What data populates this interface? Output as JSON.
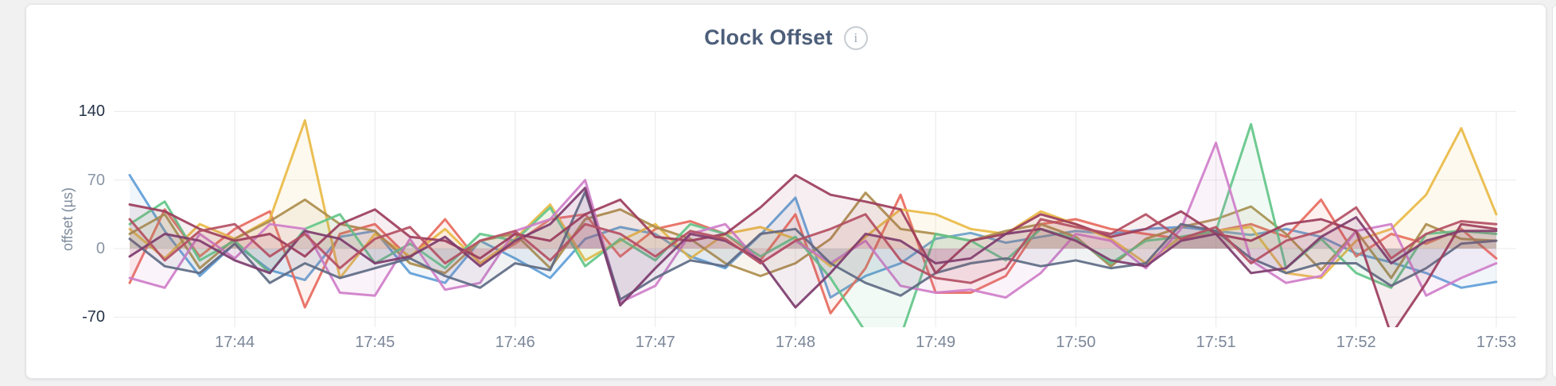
{
  "card": {
    "title": "Clock Offset",
    "info_icon_glyph": "i"
  },
  "colors": {
    "page_bg": "#f1f1f2",
    "card_bg": "#ffffff",
    "grid": "#e9e9ea",
    "axis_strong": "#263449",
    "axis_muted": "#8b95a5",
    "x_label": "#7b8699",
    "title": "#4c5e79",
    "icon_gray": "#c7ccd2"
  },
  "chart_data": {
    "type": "line",
    "title": "Clock Offset",
    "xlabel": "",
    "ylabel": "offset (µs)",
    "yticks": [
      140,
      70,
      0,
      -70
    ],
    "ylim": [
      -78,
      172
    ],
    "grid": true,
    "legend": "none",
    "x_start": "17:43:15",
    "sample_interval_seconds": 15,
    "points_per_series": 40,
    "xticklabels": [
      "17:44",
      "17:45",
      "17:46",
      "17:47",
      "17:48",
      "17:49",
      "17:50",
      "17:51",
      "17:52",
      "17:53"
    ],
    "area_fill_opacity": 0.09,
    "series": [
      {
        "name": "blue",
        "color": "#5f9ed7",
        "values": [
          75,
          18,
          -28,
          5,
          -22,
          -32,
          12,
          18,
          -25,
          -35,
          8,
          -10,
          -30,
          10,
          22,
          15,
          -8,
          -20,
          14,
          52,
          -50,
          -28,
          -15,
          10,
          16,
          6,
          12,
          18,
          15,
          20,
          22,
          18,
          14,
          20,
          12,
          -5,
          -14,
          -25,
          -40,
          -34
        ]
      },
      {
        "name": "salmon",
        "color": "#e76a5e",
        "values": [
          -35,
          40,
          -8,
          20,
          38,
          -60,
          15,
          25,
          -10,
          30,
          -15,
          5,
          30,
          35,
          -8,
          20,
          28,
          15,
          -12,
          35,
          -66,
          -20,
          55,
          -45,
          -45,
          -28,
          25,
          30,
          20,
          15,
          10,
          18,
          25,
          12,
          50,
          -8,
          15,
          5,
          20,
          -10
        ]
      },
      {
        "name": "gold",
        "color": "#e9ba45",
        "values": [
          20,
          -10,
          25,
          10,
          30,
          131,
          -30,
          15,
          -8,
          20,
          -15,
          10,
          45,
          -12,
          8,
          25,
          -10,
          15,
          22,
          10,
          -18,
          12,
          40,
          35,
          20,
          15,
          38,
          25,
          10,
          -15,
          12,
          18,
          22,
          -25,
          -30,
          8,
          20,
          55,
          123,
          35
        ]
      },
      {
        "name": "olive",
        "color": "#ac8d4d",
        "values": [
          15,
          35,
          -20,
          10,
          28,
          50,
          25,
          18,
          -15,
          -25,
          8,
          15,
          -20,
          30,
          40,
          22,
          10,
          -15,
          -28,
          -15,
          10,
          57,
          20,
          15,
          8,
          18,
          25,
          12,
          -18,
          10,
          22,
          30,
          43,
          15,
          -22,
          18,
          -30,
          25,
          10,
          8
        ]
      },
      {
        "name": "mint",
        "color": "#63c689",
        "values": [
          25,
          48,
          -12,
          8,
          -25,
          20,
          35,
          -15,
          5,
          -20,
          15,
          8,
          42,
          -18,
          10,
          -12,
          25,
          15,
          -8,
          12,
          -30,
          -85,
          -90,
          15,
          8,
          -12,
          20,
          10,
          -15,
          8,
          12,
          18,
          127,
          -20,
          10,
          -25,
          -40,
          15,
          18,
          15
        ]
      },
      {
        "name": "orchid",
        "color": "#cf7ec9",
        "values": [
          -30,
          -40,
          15,
          -10,
          25,
          20,
          -45,
          -48,
          10,
          -42,
          -35,
          18,
          30,
          70,
          -55,
          -38,
          15,
          25,
          -15,
          8,
          -15,
          8,
          -38,
          -45,
          -42,
          -50,
          -25,
          15,
          8,
          -20,
          20,
          108,
          -12,
          -35,
          -28,
          18,
          25,
          -48,
          -30,
          -15
        ]
      },
      {
        "name": "slate",
        "color": "#5e6b84",
        "values": [
          10,
          -18,
          -25,
          5,
          -35,
          -15,
          -30,
          -20,
          -10,
          -28,
          -40,
          -15,
          -22,
          58,
          -52,
          -30,
          -12,
          -18,
          15,
          20,
          -15,
          -35,
          -48,
          -25,
          -15,
          -10,
          -18,
          -12,
          -20,
          -15,
          25,
          18,
          -10,
          -25,
          -15,
          -15,
          -38,
          -20,
          5,
          8
        ]
      },
      {
        "name": "maroon",
        "color": "#9c3d5c",
        "values": [
          45,
          38,
          20,
          8,
          15,
          -8,
          25,
          40,
          12,
          8,
          -10,
          15,
          8,
          35,
          50,
          12,
          8,
          15,
          42,
          75,
          55,
          48,
          40,
          -25,
          8,
          15,
          35,
          25,
          12,
          20,
          38,
          15,
          8,
          25,
          30,
          18,
          -88,
          -35,
          25,
          20
        ]
      },
      {
        "name": "plum",
        "color": "#7d3c6e",
        "values": [
          -8,
          15,
          8,
          -12,
          -25,
          18,
          10,
          -15,
          -8,
          12,
          -18,
          8,
          25,
          62,
          -58,
          -20,
          15,
          8,
          -12,
          -60,
          -25,
          15,
          8,
          -15,
          -10,
          15,
          20,
          8,
          -12,
          -18,
          8,
          15,
          -25,
          -20,
          12,
          32,
          -15,
          8,
          18,
          18
        ]
      },
      {
        "name": "crimson",
        "color": "#b44f63",
        "values": [
          30,
          -12,
          18,
          25,
          -8,
          15,
          -20,
          10,
          22,
          -15,
          8,
          18,
          -12,
          25,
          15,
          -8,
          18,
          10,
          -15,
          8,
          20,
          35,
          -12,
          -30,
          -35,
          -20,
          30,
          22,
          15,
          35,
          10,
          22,
          -15,
          8,
          18,
          42,
          -10,
          15,
          28,
          25
        ]
      }
    ]
  }
}
